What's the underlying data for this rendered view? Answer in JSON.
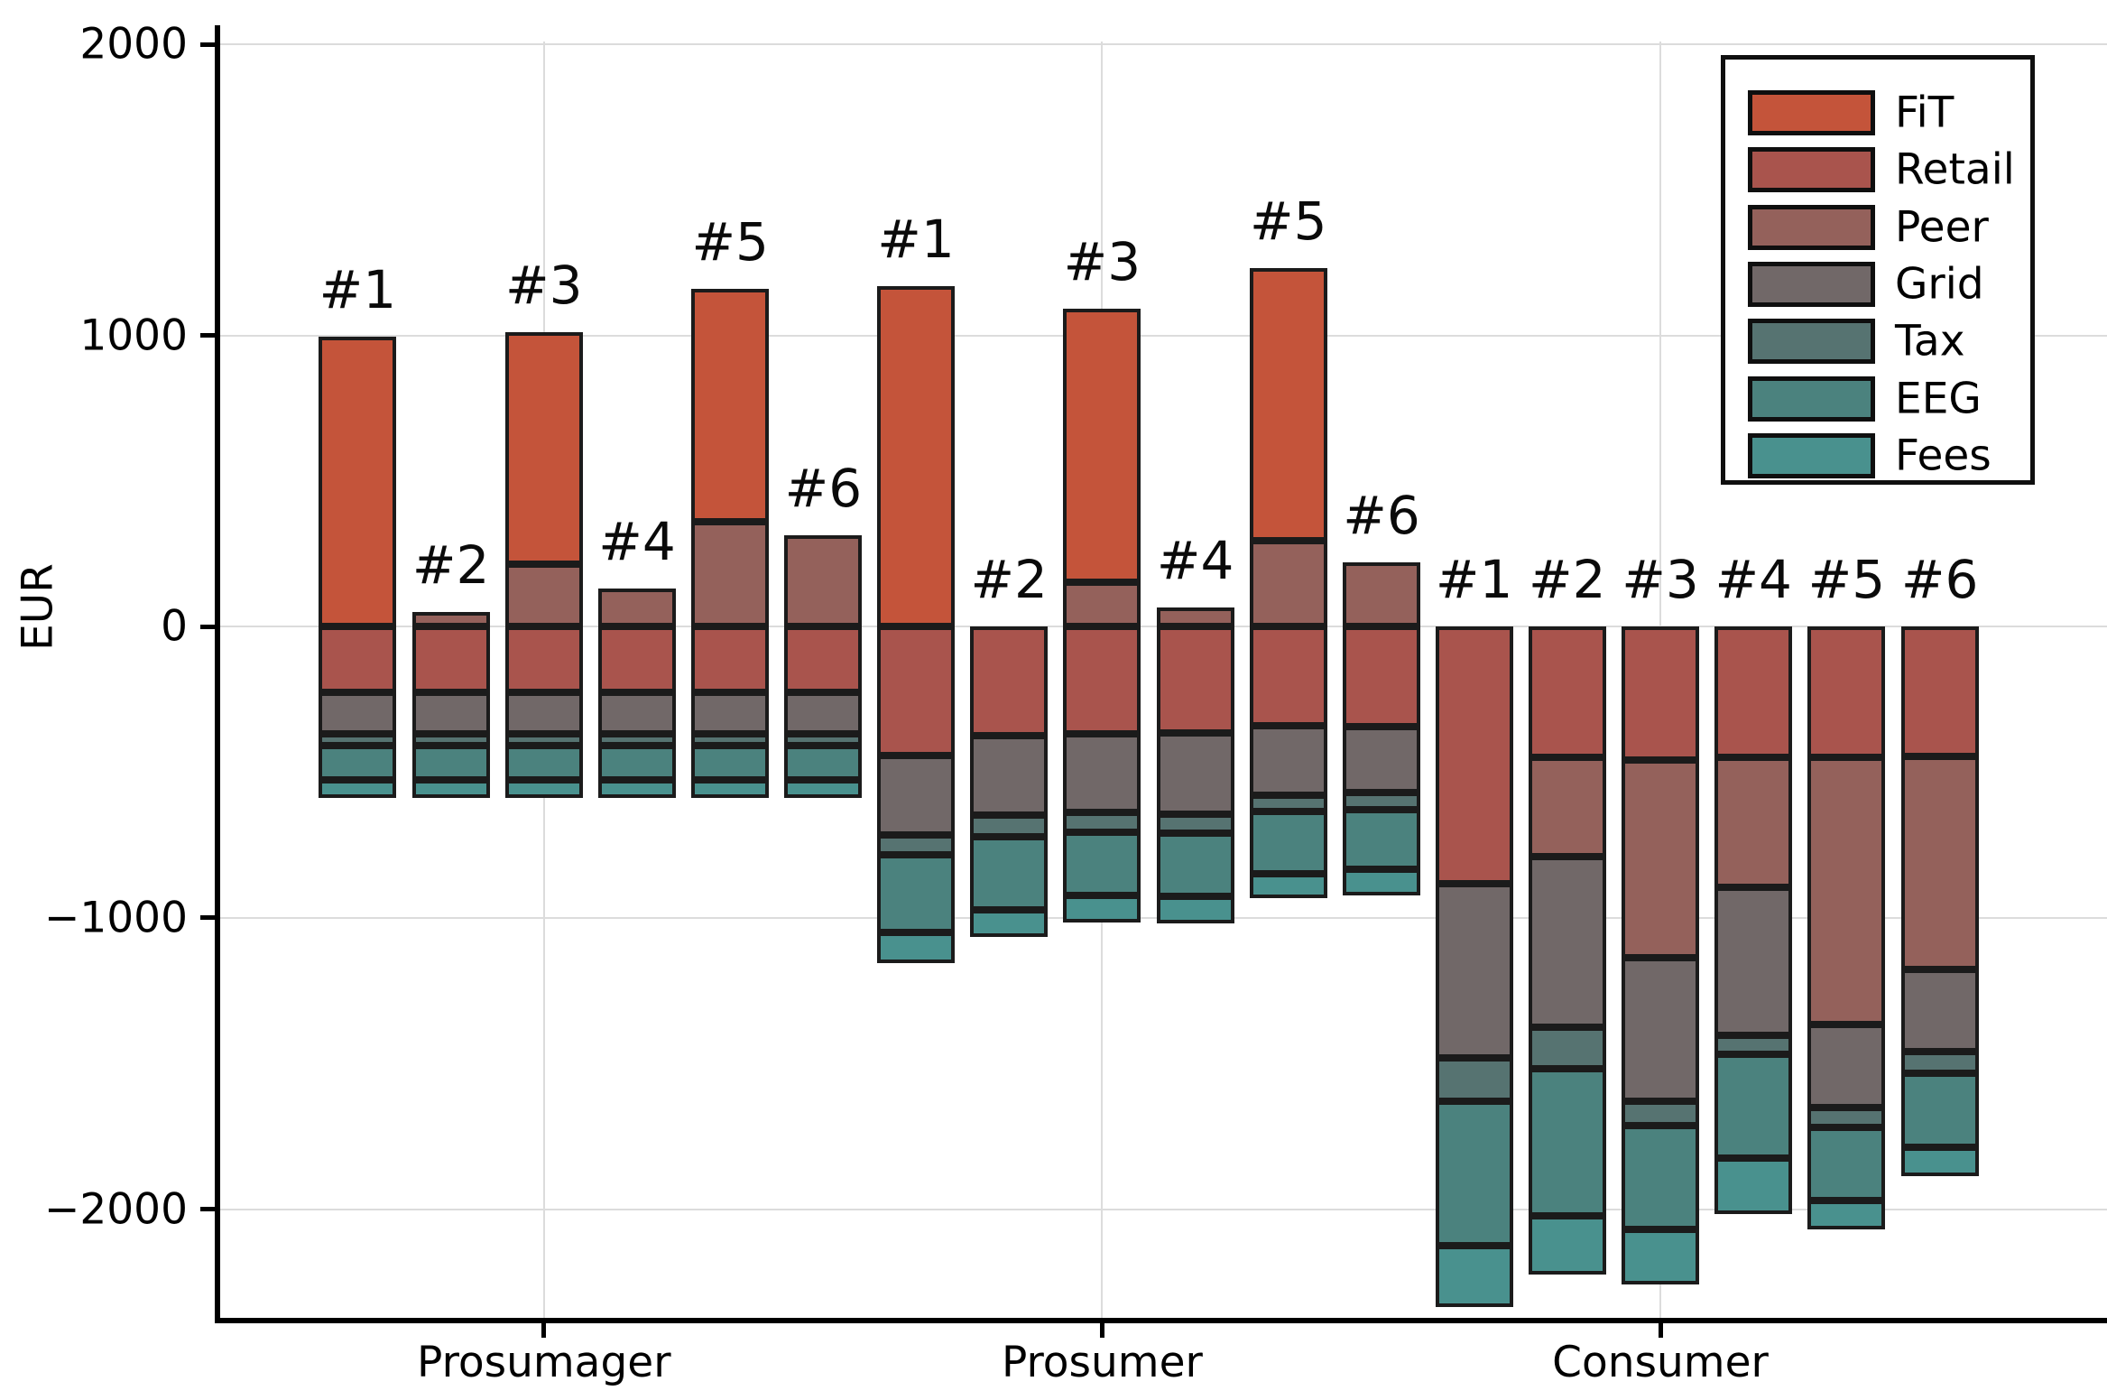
{
  "figure": {
    "ylabel": "EUR",
    "background_color": "#FFFFFF",
    "edge_color": "#1B1B1B",
    "gridline_color": "#DCDCDC"
  },
  "axis": {
    "y_ticks": [
      {
        "label": "2000",
        "value": 2000
      },
      {
        "label": "1000",
        "value": 1000
      },
      {
        "label": "0",
        "value": 0
      },
      {
        "label": "−1000",
        "value": -1000
      },
      {
        "label": "−2000",
        "value": -2000
      }
    ],
    "x_tick_labels": [
      "Prosumager",
      "Prosumer",
      "Consumer"
    ]
  },
  "legend": {
    "entries": [
      {
        "label": "FiT",
        "color": "#C4543A"
      },
      {
        "label": "Retail",
        "color": "#A9544D"
      },
      {
        "label": "Peer",
        "color": "#94615B"
      },
      {
        "label": "Grid",
        "color": "#716868"
      },
      {
        "label": "Tax",
        "color": "#567371"
      },
      {
        "label": "EEG",
        "color": "#4B827E"
      },
      {
        "label": "Fees",
        "color": "#49918E"
      }
    ]
  },
  "chart_data": {
    "type": "bar",
    "stacked": true,
    "title": "",
    "xlabel": "",
    "ylabel": "EUR",
    "ylim": [
      -2380,
      2040
    ],
    "grid": true,
    "legend_position": "top-right",
    "series_order": [
      "FiT",
      "Retail",
      "Peer",
      "Grid",
      "Tax",
      "EEG",
      "Fees"
    ],
    "colors": {
      "FiT": "#C4543A",
      "Retail": "#A9544D",
      "Peer": "#94615B",
      "Grid": "#716868",
      "Tax": "#567371",
      "EEG": "#4B827E",
      "Fees": "#49918E"
    },
    "units": "EUR",
    "groups": [
      {
        "label": "Prosumager",
        "bars": [
          {
            "label": "#1",
            "segments": [
              {
                "name": "FiT",
                "value": 995
              },
              {
                "name": "Retail",
                "value": -225
              },
              {
                "name": "Grid",
                "value": -144
              },
              {
                "name": "Tax",
                "value": -40
              },
              {
                "name": "EEG",
                "value": -118
              },
              {
                "name": "Fees",
                "value": -60
              }
            ]
          },
          {
            "label": "#2",
            "segments": [
              {
                "name": "Peer",
                "value": 50
              },
              {
                "name": "Retail",
                "value": -225
              },
              {
                "name": "Grid",
                "value": -144
              },
              {
                "name": "Tax",
                "value": -40
              },
              {
                "name": "EEG",
                "value": -118
              },
              {
                "name": "Fees",
                "value": -60
              }
            ]
          },
          {
            "label": "#3",
            "segments": [
              {
                "name": "Peer",
                "value": 216
              },
              {
                "name": "FiT",
                "value": 795
              },
              {
                "name": "Retail",
                "value": -225
              },
              {
                "name": "Grid",
                "value": -144
              },
              {
                "name": "Tax",
                "value": -40
              },
              {
                "name": "EEG",
                "value": -118
              },
              {
                "name": "Fees",
                "value": -60
              }
            ]
          },
          {
            "label": "#4",
            "segments": [
              {
                "name": "Peer",
                "value": 130
              },
              {
                "name": "Retail",
                "value": -225
              },
              {
                "name": "Grid",
                "value": -144
              },
              {
                "name": "Tax",
                "value": -40
              },
              {
                "name": "EEG",
                "value": -118
              },
              {
                "name": "Fees",
                "value": -60
              }
            ]
          },
          {
            "label": "#5",
            "segments": [
              {
                "name": "Peer",
                "value": 360
              },
              {
                "name": "FiT",
                "value": 800
              },
              {
                "name": "Retail",
                "value": -225
              },
              {
                "name": "Grid",
                "value": -144
              },
              {
                "name": "Tax",
                "value": -40
              },
              {
                "name": "EEG",
                "value": -118
              },
              {
                "name": "Fees",
                "value": -60
              }
            ]
          },
          {
            "label": "#6",
            "segments": [
              {
                "name": "Peer",
                "value": 313
              },
              {
                "name": "Retail",
                "value": -225
              },
              {
                "name": "Grid",
                "value": -144
              },
              {
                "name": "Tax",
                "value": -40
              },
              {
                "name": "EEG",
                "value": -118
              },
              {
                "name": "Fees",
                "value": -60
              }
            ]
          }
        ]
      },
      {
        "label": "Prosumer",
        "bars": [
          {
            "label": "#1",
            "segments": [
              {
                "name": "FiT",
                "value": 1170
              },
              {
                "name": "Retail",
                "value": -441
              },
              {
                "name": "Grid",
                "value": -274
              },
              {
                "name": "Tax",
                "value": -67
              },
              {
                "name": "EEG",
                "value": -269
              },
              {
                "name": "Fees",
                "value": -103
              }
            ]
          },
          {
            "label": "#2",
            "segments": [
              {
                "name": "Retail",
                "value": -374
              },
              {
                "name": "Grid",
                "value": -274
              },
              {
                "name": "Tax",
                "value": -72
              },
              {
                "name": "EEG",
                "value": -253
              },
              {
                "name": "Fees",
                "value": -93
              }
            ]
          },
          {
            "label": "#3",
            "segments": [
              {
                "name": "Peer",
                "value": 153
              },
              {
                "name": "FiT",
                "value": 940
              },
              {
                "name": "Retail",
                "value": -369
              },
              {
                "name": "Grid",
                "value": -269
              },
              {
                "name": "Tax",
                "value": -67
              },
              {
                "name": "EEG",
                "value": -217
              },
              {
                "name": "Fees",
                "value": -93
              }
            ]
          },
          {
            "label": "#4",
            "segments": [
              {
                "name": "Peer",
                "value": 65
              },
              {
                "name": "Retail",
                "value": -364
              },
              {
                "name": "Grid",
                "value": -279
              },
              {
                "name": "Tax",
                "value": -67
              },
              {
                "name": "EEG",
                "value": -217
              },
              {
                "name": "Fees",
                "value": -93
              }
            ]
          },
          {
            "label": "#5",
            "segments": [
              {
                "name": "Peer",
                "value": 295
              },
              {
                "name": "FiT",
                "value": 937
              },
              {
                "name": "Retail",
                "value": -340
              },
              {
                "name": "Grid",
                "value": -240
              },
              {
                "name": "Tax",
                "value": -55
              },
              {
                "name": "EEG",
                "value": -212
              },
              {
                "name": "Fees",
                "value": -85
              }
            ]
          },
          {
            "label": "#6",
            "segments": [
              {
                "name": "Peer",
                "value": 222
              },
              {
                "name": "Retail",
                "value": -343
              },
              {
                "name": "Grid",
                "value": -227
              },
              {
                "name": "Tax",
                "value": -57
              },
              {
                "name": "EEG",
                "value": -207
              },
              {
                "name": "Fees",
                "value": -88
              }
            ]
          }
        ]
      },
      {
        "label": "Consumer",
        "bars": [
          {
            "label": "#1",
            "segments": [
              {
                "name": "Retail",
                "value": -881
              },
              {
                "name": "Grid",
                "value": -599
              },
              {
                "name": "Tax",
                "value": -150
              },
              {
                "name": "EEG",
                "value": -496
              },
              {
                "name": "Fees",
                "value": -211
              }
            ]
          },
          {
            "label": "#2",
            "segments": [
              {
                "name": "Retail",
                "value": -450
              },
              {
                "name": "Peer",
                "value": -338
              },
              {
                "name": "Grid",
                "value": -588
              },
              {
                "name": "Tax",
                "value": -143
              },
              {
                "name": "EEG",
                "value": -503
              },
              {
                "name": "Fees",
                "value": -201
              }
            ]
          },
          {
            "label": "#3",
            "segments": [
              {
                "name": "Retail",
                "value": -457
              },
              {
                "name": "Peer",
                "value": -680
              },
              {
                "name": "Grid",
                "value": -493
              },
              {
                "name": "Tax",
                "value": -83
              },
              {
                "name": "EEG",
                "value": -356
              },
              {
                "name": "Fees",
                "value": -191
              }
            ]
          },
          {
            "label": "#4",
            "segments": [
              {
                "name": "Retail",
                "value": -449
              },
              {
                "name": "Peer",
                "value": -447
              },
              {
                "name": "Grid",
                "value": -506
              },
              {
                "name": "Tax",
                "value": -67
              },
              {
                "name": "EEG",
                "value": -357
              },
              {
                "name": "Fees",
                "value": -191
              }
            ]
          },
          {
            "label": "#5",
            "segments": [
              {
                "name": "Retail",
                "value": -449
              },
              {
                "name": "Peer",
                "value": -917
              },
              {
                "name": "Grid",
                "value": -284
              },
              {
                "name": "Tax",
                "value": -70
              },
              {
                "name": "EEG",
                "value": -250
              },
              {
                "name": "Fees",
                "value": -99
              }
            ]
          },
          {
            "label": "#6",
            "segments": [
              {
                "name": "Retail",
                "value": -446
              },
              {
                "name": "Peer",
                "value": -732
              },
              {
                "name": "Grid",
                "value": -281
              },
              {
                "name": "Tax",
                "value": -75
              },
              {
                "name": "EEG",
                "value": -254
              },
              {
                "name": "Fees",
                "value": -100
              }
            ]
          }
        ]
      }
    ]
  }
}
